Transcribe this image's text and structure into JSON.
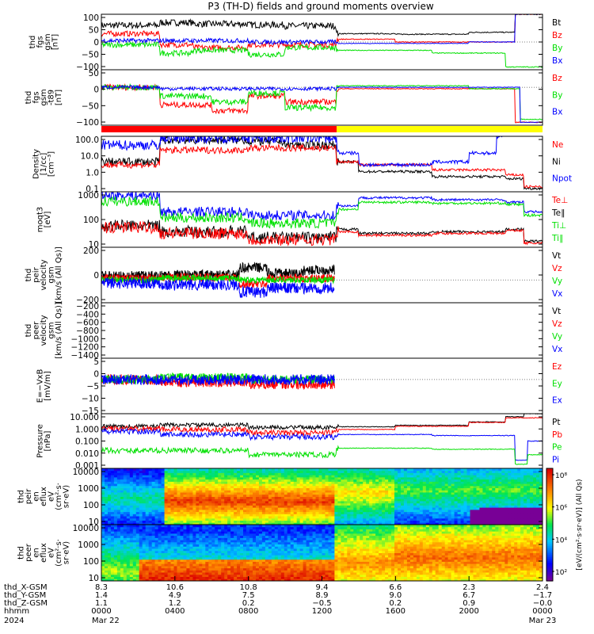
{
  "title": "P3 (TH-D) fields and ground moments overview",
  "colors": {
    "black": "#000000",
    "red": "#ff0000",
    "green": "#00e000",
    "blue": "#0000ff",
    "yellow": "#ffff00"
  },
  "chart_data": {
    "type": "line",
    "panels": [
      {
        "id": "fgs-gsm",
        "ylabel": [
          "thd",
          "fgs",
          "gsm",
          "[nT]"
        ],
        "ylim": [
          -100,
          100
        ],
        "yticks": [
          "100",
          "50",
          "0",
          "−50",
          "−100"
        ],
        "legend": [
          {
            "name": "Bt",
            "color": "black"
          },
          {
            "name": "Bz",
            "color": "red"
          },
          {
            "name": "By",
            "color": "green"
          },
          {
            "name": "Bx",
            "color": "blue"
          }
        ]
      },
      {
        "id": "fgs-gsm-t89",
        "ylabel": [
          "thd",
          "fgs",
          "gsm",
          "-t89",
          "[nT]"
        ],
        "ylim": [
          -130,
          60
        ],
        "yticks": [
          "50",
          "0",
          "−50",
          "−100"
        ],
        "legend": [
          {
            "name": "Bz",
            "color": "red"
          },
          {
            "name": "By",
            "color": "green"
          },
          {
            "name": "Bx",
            "color": "blue"
          }
        ]
      },
      {
        "id": "density",
        "ylabel": [
          "Density",
          "[1/cc]",
          "[cm⁻³]"
        ],
        "ylim": [
          0.05,
          100
        ],
        "scale": "log",
        "yticks": [
          "100.0",
          "10.0",
          "1.0",
          "0.1"
        ],
        "legend": [
          {
            "name": "Ne",
            "color": "red"
          },
          {
            "name": "Ni",
            "color": "black"
          },
          {
            "name": "Npot",
            "color": "blue"
          }
        ]
      },
      {
        "id": "temperature",
        "ylabel": [
          "moqt3",
          "[eV]"
        ],
        "ylim": [
          5,
          3000
        ],
        "scale": "log",
        "yticks": [
          "1000",
          "100",
          "10"
        ],
        "legend": [
          {
            "name": "Te⊥",
            "color": "red"
          },
          {
            "name": "Te∥",
            "color": "black"
          },
          {
            "name": "Ti⊥",
            "color": "green"
          },
          {
            "name": "Ti∥",
            "color": "green"
          }
        ]
      },
      {
        "id": "peir-velocity",
        "ylabel": [
          "thd",
          "peir",
          "velocity",
          "gsm",
          "[km/s (All Qs)]"
        ],
        "ylim": [
          -280,
          400
        ],
        "yticks": [
          "200",
          "0",
          "−200"
        ],
        "legend": [
          {
            "name": "Vt",
            "color": "black"
          },
          {
            "name": "Vz",
            "color": "red"
          },
          {
            "name": "Vy",
            "color": "green"
          },
          {
            "name": "Vx",
            "color": "blue"
          }
        ]
      },
      {
        "id": "peer-velocity",
        "ylabel": [
          "thd",
          "peer",
          "velocity",
          "gsm",
          "[km/s (All Qs)]"
        ],
        "ylim": [
          -1500,
          0
        ],
        "yticks": [
          "−200",
          "−400",
          "−600",
          "−800",
          "−1000",
          "−1200",
          "−1400"
        ],
        "legend": [
          {
            "name": "Vt",
            "color": "black"
          },
          {
            "name": "Vz",
            "color": "red"
          },
          {
            "name": "Vy",
            "color": "green"
          },
          {
            "name": "Vx",
            "color": "blue"
          }
        ]
      },
      {
        "id": "efield",
        "ylabel": [
          "E=−VxB",
          "[mV/m]"
        ],
        "ylim": [
          -16,
          10
        ],
        "yticks": [
          "5",
          "0",
          "−5",
          "−10",
          "−15"
        ],
        "legend": [
          {
            "name": "Ez",
            "color": "red"
          },
          {
            "name": "Ey",
            "color": "green"
          },
          {
            "name": "Ex",
            "color": "blue"
          }
        ]
      },
      {
        "id": "pressure",
        "ylabel": [
          "Pressure",
          "[nPa]"
        ],
        "ylim": [
          0.001,
          10
        ],
        "scale": "log",
        "yticks": [
          "10.000",
          "1.000",
          "0.100",
          "0.010",
          "0.001"
        ],
        "legend": [
          {
            "name": "Pt",
            "color": "black"
          },
          {
            "name": "Pb",
            "color": "red"
          },
          {
            "name": "Pe",
            "color": "green"
          },
          {
            "name": "Pi",
            "color": "blue"
          }
        ]
      },
      {
        "id": "peir-spec",
        "ylabel": [
          "thd",
          "peir",
          "en",
          "eflux",
          "eV",
          "(cm²·s·",
          "sr·eV)"
        ],
        "ylim": [
          6,
          20000
        ],
        "scale": "log",
        "yticks": [
          "10000",
          "1000",
          "100",
          "10"
        ],
        "type": "heatmap"
      },
      {
        "id": "peer-spec",
        "ylabel": [
          "thd",
          "peer",
          "en",
          "eflux",
          "eV",
          "(cm²·s·",
          "sr·eV)"
        ],
        "ylim": [
          6,
          20000
        ],
        "scale": "log",
        "yticks": [
          "10000",
          "1000",
          "100",
          "10"
        ],
        "type": "heatmap"
      }
    ],
    "colorbar": {
      "label": "[eV/(cm²·s·sr·eV)] (All Qs)",
      "ticks": [
        "10⁸",
        "10⁶",
        "10⁴",
        "10²"
      ]
    },
    "x_axis": {
      "rows": [
        {
          "label": "thd_X-GSM",
          "values": [
            "8.3",
            "10.6",
            "10.8",
            "9.4",
            "6.6",
            "2.3",
            "2.4"
          ]
        },
        {
          "label": "thd_Y-GSM",
          "values": [
            "1.4",
            "4.9",
            "7.5",
            "8.9",
            "9.0",
            "6.7",
            "−1.7"
          ]
        },
        {
          "label": "thd_Z-GSM",
          "values": [
            "1.1",
            "1.2",
            "0.2",
            "−0.5",
            "0.2",
            "0.9",
            "−0.0"
          ]
        },
        {
          "label": "hhmm",
          "values": [
            "0000",
            "0400",
            "0800",
            "1200",
            "1600",
            "2000",
            "0000"
          ]
        }
      ],
      "year": "2024",
      "start_date": "Mar 22",
      "end_date": "Mar 23",
      "range_hours": [
        0,
        24
      ]
    }
  }
}
